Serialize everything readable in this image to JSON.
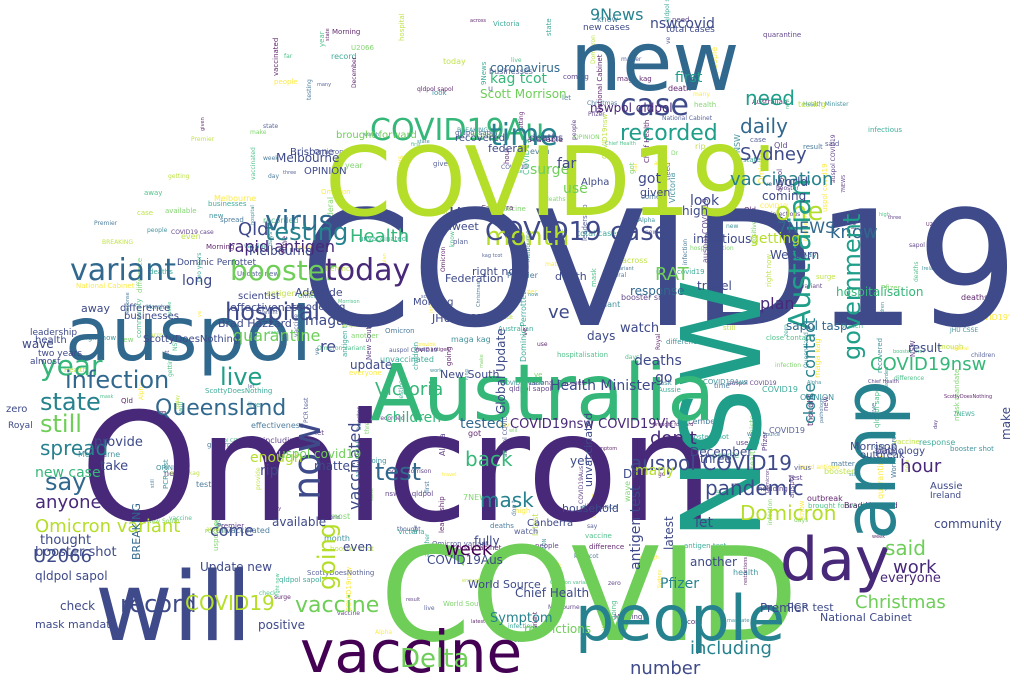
{
  "image": {
    "kind": "word cloud",
    "background": "#ffffff",
    "palette": [
      "#440154",
      "#482878",
      "#3e4a89",
      "#31688e",
      "#26828e",
      "#1f9e89",
      "#35b779",
      "#6ece58",
      "#b5de2b",
      "#fde725"
    ]
  },
  "words": [
    {
      "text": "COVID19",
      "color": "#3e4a89"
    },
    {
      "text": "Omicron",
      "color": "#482878"
    },
    {
      "text": "NSW",
      "color": "#1f9e89"
    },
    {
      "text": "COVID19'",
      "color": "#b5de2b"
    },
    {
      "text": "COVID",
      "color": "#6ece58"
    },
    {
      "text": "new",
      "color": "#31688e"
    },
    {
      "text": "will",
      "color": "#3e4a89"
    },
    {
      "text": "auspol",
      "color": "#31688e"
    },
    {
      "text": "Australia",
      "color": "#35b779"
    },
    {
      "text": "amp",
      "color": "#26828e"
    },
    {
      "text": "day",
      "color": "#482878"
    },
    {
      "text": "people",
      "color": "#26828e"
    },
    {
      "text": "vaccine",
      "color": "#440154"
    },
    {
      "text": "case",
      "color": "#3e4a89"
    },
    {
      "text": "COVID19Au",
      "color": "#35b779"
    },
    {
      "text": "time",
      "color": "#26828e"
    },
    {
      "text": "recorded",
      "color": "#1f9e89"
    },
    {
      "text": "variant",
      "color": "#31688e"
    },
    {
      "text": "booster",
      "color": "#6ece58"
    },
    {
      "text": "virus",
      "color": "#31688e"
    },
    {
      "text": "today",
      "color": "#482878"
    },
    {
      "text": "month",
      "color": "#b5de2b"
    },
    {
      "text": "COVID19 case",
      "color": "#3e4a89"
    },
    {
      "text": "testing",
      "color": "#26828e"
    },
    {
      "text": "year",
      "color": "#35b779"
    },
    {
      "text": "hospital",
      "color": "#3e4a89"
    },
    {
      "text": "infection",
      "color": "#31688e"
    },
    {
      "text": "live",
      "color": "#1f9e89"
    },
    {
      "text": "Queensland",
      "color": "#31688e"
    },
    {
      "text": "state",
      "color": "#26828e"
    },
    {
      "text": "still",
      "color": "#6ece58"
    },
    {
      "text": "say",
      "color": "#31688e"
    },
    {
      "text": "now",
      "color": "#3e4a89"
    },
    {
      "text": "Victoria",
      "color": "#35b779"
    },
    {
      "text": "going",
      "color": "#b5de2b"
    },
    {
      "text": "Delta",
      "color": "#6ece58"
    },
    {
      "text": "record",
      "color": "#3e4a89"
    },
    {
      "text": "COVID19",
      "color": "#b5de2b"
    },
    {
      "text": "vaccine",
      "color": "#6ece58"
    },
    {
      "text": "one",
      "color": "#b5de2b"
    },
    {
      "text": "need",
      "color": "#1f9e89"
    },
    {
      "text": "daily",
      "color": "#31688e"
    },
    {
      "text": "Sydney",
      "color": "#3e4a89"
    },
    {
      "text": "vaccination",
      "color": "#26828e"
    },
    {
      "text": "Australian",
      "color": "#1f9e89"
    },
    {
      "text": "know",
      "color": "#31688e"
    },
    {
      "text": "government",
      "color": "#1f9e89"
    },
    {
      "text": "close contact",
      "color": "#26828e"
    },
    {
      "text": "said",
      "color": "#6ece58"
    },
    {
      "text": "work",
      "color": "#482878"
    },
    {
      "text": "pandemic",
      "color": "#3e4a89"
    },
    {
      "text": "auspol COVID19",
      "color": "#3e4a89"
    },
    {
      "text": "hour",
      "color": "#482878"
    },
    {
      "text": "Domicron",
      "color": "#b5de2b"
    },
    {
      "text": "test",
      "color": "#31688e"
    },
    {
      "text": "back",
      "color": "#35b779"
    },
    {
      "text": "mask",
      "color": "#26828e"
    },
    {
      "text": "week",
      "color": "#440154"
    },
    {
      "text": "don t",
      "color": "#482878"
    },
    {
      "text": "Omicron variant",
      "color": "#b5de2b"
    },
    {
      "text": "anyone",
      "color": "#482878"
    },
    {
      "text": "9News",
      "color": "#26828e"
    },
    {
      "text": "nswcovid",
      "color": "#3e4a89"
    },
    {
      "text": "Health",
      "color": "#35b779"
    },
    {
      "text": "Qld",
      "color": "#3e4a89"
    },
    {
      "text": "rapid antigen",
      "color": "#482878"
    },
    {
      "text": "7NEWS",
      "color": "#31688e"
    },
    {
      "text": "RAT",
      "color": "#6ece58"
    },
    {
      "text": "deaths",
      "color": "#3e4a89"
    },
    {
      "text": "Health Minister",
      "color": "#3e4a89"
    },
    {
      "text": "COVID19nsw COVID19Vic",
      "color": "#482878"
    },
    {
      "text": "tested",
      "color": "#31688e"
    },
    {
      "text": "children",
      "color": "#35b779"
    },
    {
      "text": "vaccinated",
      "color": "#3e4a89"
    },
    {
      "text": "Christmas",
      "color": "#6ece58"
    },
    {
      "text": "COVID19nsw",
      "color": "#35b779"
    },
    {
      "text": "including",
      "color": "#26828e"
    },
    {
      "text": "number",
      "color": "#3e4a89"
    },
    {
      "text": "U2066",
      "color": "#3e4a89"
    },
    {
      "text": "quarantine",
      "color": "#6ece58"
    },
    {
      "text": "spread",
      "color": "#26828e"
    },
    {
      "text": "first",
      "color": "#1f9e89"
    },
    {
      "text": "kag tcot",
      "color": "#35b779"
    },
    {
      "text": "Scott Morrison",
      "color": "#6ece58"
    },
    {
      "text": "coronavirus",
      "color": "#31688e"
    },
    {
      "text": "nswpol qldpol",
      "color": "#482878"
    },
    {
      "text": "maga kag",
      "color": "#3e4a89"
    },
    {
      "text": "enough",
      "color": "#b5de2b"
    },
    {
      "text": "come",
      "color": "#3e4a89"
    },
    {
      "text": "new case",
      "color": "#35b779"
    },
    {
      "text": "thought",
      "color": "#3e4a89"
    },
    {
      "text": "booster shot",
      "color": "#3e4a89"
    },
    {
      "text": "take",
      "color": "#3e4a89"
    },
    {
      "text": "check",
      "color": "#3e4a89"
    },
    {
      "text": "qldpol sapol",
      "color": "#3e4a89"
    },
    {
      "text": "mask mandate",
      "color": "#3e4a89"
    },
    {
      "text": "BREAKING",
      "color": "#31688e"
    },
    {
      "text": "Symptom",
      "color": "#26828e"
    },
    {
      "text": "Pfizer",
      "color": "#26828e"
    },
    {
      "text": "antigen test",
      "color": "#3e4a89"
    },
    {
      "text": "Premier",
      "color": "#3e4a89"
    },
    {
      "text": "getting",
      "color": "#b5de2b"
    },
    {
      "text": "plan",
      "color": "#482878"
    },
    {
      "text": "sapol tasp",
      "color": "#31688e"
    },
    {
      "text": "Melbourne",
      "color": "#3e4a89"
    },
    {
      "text": "hospitalisation",
      "color": "#35b779"
    },
    {
      "text": "everyone",
      "color": "#482878"
    },
    {
      "text": "PCR test",
      "color": "#3e4a89"
    },
    {
      "text": "Chief Health",
      "color": "#3e4a89"
    },
    {
      "text": "World Source",
      "color": "#3e4a89"
    },
    {
      "text": "New South",
      "color": "#3e4a89"
    },
    {
      "text": "Global Update",
      "color": "#3e4a89"
    },
    {
      "text": "Brad Hazzard",
      "color": "#3e4a89"
    },
    {
      "text": "surge",
      "color": "#6ece58"
    },
    {
      "text": "look",
      "color": "#3e4a89"
    },
    {
      "text": "high",
      "color": "#3e4a89"
    },
    {
      "text": "coming",
      "color": "#3e4a89"
    },
    {
      "text": "world",
      "color": "#3e4a89"
    },
    {
      "text": "infectious",
      "color": "#3e4a89"
    },
    {
      "text": "watch",
      "color": "#3e4a89"
    },
    {
      "text": "let",
      "color": "#3e4a89"
    },
    {
      "text": "result",
      "color": "#3e4a89"
    },
    {
      "text": "across",
      "color": "#3e4a89"
    },
    {
      "text": "rip",
      "color": "#3e4a89"
    },
    {
      "text": "matter",
      "color": "#3e4a89"
    },
    {
      "text": "provide",
      "color": "#3e4a89"
    },
    {
      "text": "positive",
      "color": "#3e4a89"
    },
    {
      "text": "available",
      "color": "#3e4a89"
    },
    {
      "text": "fully",
      "color": "#3e4a89"
    },
    {
      "text": "restrictions",
      "color": "#6ece58"
    },
    {
      "text": "latest",
      "color": "#3e4a89"
    },
    {
      "text": "community",
      "color": "#3e4a89"
    },
    {
      "text": "Morrison",
      "color": "#3e4a89"
    },
    {
      "text": "make",
      "color": "#3e4a89"
    },
    {
      "text": "National Cabinet",
      "color": "#3e4a89"
    },
    {
      "text": "Update new",
      "color": "#3e4a89"
    },
    {
      "text": "December",
      "color": "#3e4a89"
    },
    {
      "text": "another",
      "color": "#3e4a89"
    },
    {
      "text": "COVID19Aus",
      "color": "#3e4a89"
    },
    {
      "text": "update",
      "color": "#3e4a89"
    },
    {
      "text": "household",
      "color": "#3e4a89"
    },
    {
      "text": "unvaccinated",
      "color": "#3e4a89"
    },
    {
      "text": "ve",
      "color": "#3e4a89"
    },
    {
      "text": "re",
      "color": "#3e4a89"
    },
    {
      "text": "u",
      "color": "#3e4a89"
    },
    {
      "text": "many",
      "color": "#b5de2b"
    },
    {
      "text": "go",
      "color": "#3e4a89"
    },
    {
      "text": "three",
      "color": "#3e4a89"
    },
    {
      "text": "uspol covid19",
      "color": "#6ece58"
    },
    {
      "text": "response",
      "color": "#31688e"
    },
    {
      "text": "Western",
      "color": "#3e4a89"
    },
    {
      "text": "travel",
      "color": "#3e4a89"
    },
    {
      "text": "days",
      "color": "#3e4a89"
    },
    {
      "text": "got",
      "color": "#3e4a89"
    },
    {
      "text": "given",
      "color": "#3e4a89"
    },
    {
      "text": "far",
      "color": "#3e4a89"
    },
    {
      "text": "use",
      "color": "#6ece58"
    },
    {
      "text": "JHU CSSE",
      "color": "#3e4a89"
    },
    {
      "text": "right now",
      "color": "#3e4a89"
    },
    {
      "text": "Federation",
      "color": "#3e4a89"
    },
    {
      "text": "Adelaide",
      "color": "#3e4a89"
    },
    {
      "text": "modelling",
      "color": "#3e4a89"
    },
    {
      "text": "recovered",
      "color": "#3e4a89"
    },
    {
      "text": "deaths",
      "color": "#3e4a89"
    },
    {
      "text": "federal",
      "color": "#3e4a89"
    },
    {
      "text": "brought forward",
      "color": "#6ece58"
    },
    {
      "text": "OPINION",
      "color": "#3e4a89"
    },
    {
      "text": "Tweet",
      "color": "#3e4a89"
    },
    {
      "text": "ScottyDoesNothing",
      "color": "#3e4a89"
    },
    {
      "text": "health",
      "color": "#3e4a89"
    },
    {
      "text": "leadership",
      "color": "#3e4a89"
    },
    {
      "text": "two years",
      "color": "#3e4a89"
    },
    {
      "text": "almost",
      "color": "#3e4a89"
    },
    {
      "text": "zero",
      "color": "#3e4a89"
    },
    {
      "text": "Royal",
      "color": "#3e4a89"
    },
    {
      "text": "effectiveness",
      "color": "#3e4a89"
    },
    {
      "text": "scientist",
      "color": "#3e4a89"
    },
    {
      "text": "wave",
      "color": "#3e4a89"
    },
    {
      "text": "long",
      "color": "#3e4a89"
    },
    {
      "text": "difference",
      "color": "#3e4a89"
    },
    {
      "text": "businesses",
      "color": "#3e4a89"
    },
    {
      "text": "pathology",
      "color": "#3e4a89"
    },
    {
      "text": "outbreak",
      "color": "#3e4a89"
    },
    {
      "text": "Aussie",
      "color": "#3e4a89"
    },
    {
      "text": "Ireland",
      "color": "#3e4a89"
    },
    {
      "text": "Melbourne",
      "color": "#3e4a89"
    },
    {
      "text": "Dominic Perrottet",
      "color": "#3e4a89"
    },
    {
      "text": "Brisbane",
      "color": "#3e4a89"
    },
    {
      "text": "Canberra",
      "color": "#3e4a89"
    },
    {
      "text": "Morning",
      "color": "#3e4a89"
    },
    {
      "text": "Alpha",
      "color": "#3e4a89"
    },
    {
      "text": "death",
      "color": "#3e4a89"
    },
    {
      "text": "yet",
      "color": "#3e4a89"
    },
    {
      "text": "Dr",
      "color": "#3e4a89"
    },
    {
      "text": "even",
      "color": "#3e4a89"
    },
    {
      "text": "away",
      "color": "#3e4a89"
    },
    {
      "text": "total cases",
      "color": "#3e4a89"
    },
    {
      "text": "new cases",
      "color": "#3e4a89"
    }
  ]
}
